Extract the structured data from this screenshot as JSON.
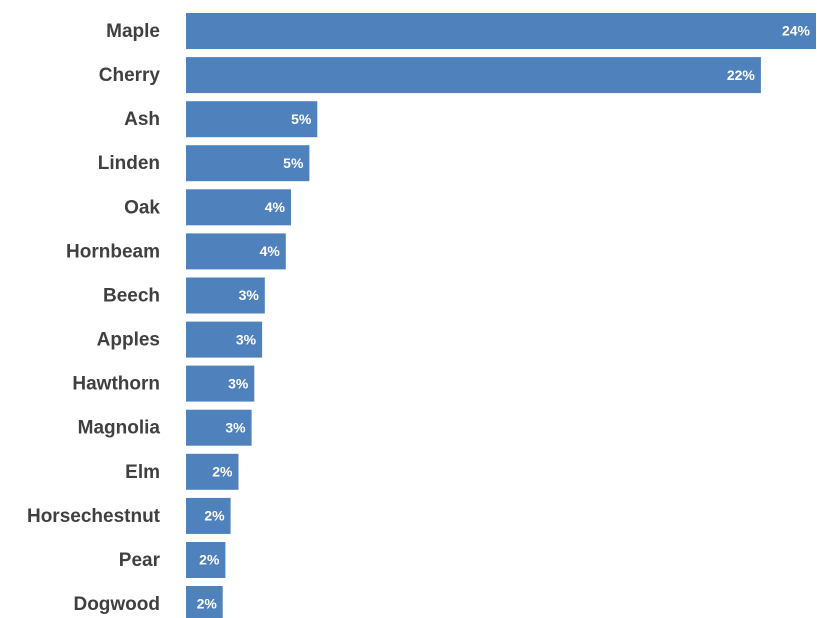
{
  "chart_data": {
    "type": "bar",
    "orientation": "horizontal",
    "categories": [
      "Maple",
      "Cherry",
      "Ash",
      "Linden",
      "Oak",
      "Hornbeam",
      "Beech",
      "Apples",
      "Hawthorn",
      "Magnolia",
      "Elm",
      "Horsechestnut",
      "Pear",
      "Dogwood"
    ],
    "values": [
      24,
      22,
      5,
      5,
      4,
      4,
      3,
      3,
      3,
      3,
      2,
      2,
      2,
      2
    ],
    "precise_values": [
      24.0,
      21.9,
      5.0,
      4.7,
      4.0,
      3.8,
      3.0,
      2.9,
      2.6,
      2.5,
      2.0,
      1.7,
      1.5,
      1.4
    ],
    "data_labels": [
      "24%",
      "22%",
      "5%",
      "5%",
      "4%",
      "4%",
      "3%",
      "3%",
      "3%",
      "3%",
      "2%",
      "2%",
      "2%",
      "2%"
    ],
    "title": "",
    "xlabel": "",
    "ylabel": "",
    "xlim": [
      0,
      24
    ],
    "unit": "%",
    "grid": false,
    "legend": "none",
    "bar_color": "#4f81bd",
    "label_color": "#404040",
    "data_label_color": "#ffffff"
  }
}
